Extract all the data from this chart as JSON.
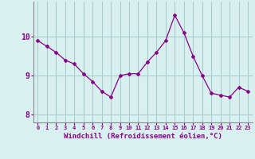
{
  "x": [
    0,
    1,
    2,
    3,
    4,
    5,
    6,
    7,
    8,
    9,
    10,
    11,
    12,
    13,
    14,
    15,
    16,
    17,
    18,
    19,
    20,
    21,
    22,
    23
  ],
  "y": [
    9.9,
    9.75,
    9.6,
    9.4,
    9.3,
    9.05,
    8.85,
    8.6,
    8.45,
    9.0,
    9.05,
    9.05,
    9.35,
    9.6,
    9.9,
    10.55,
    10.1,
    9.5,
    9.0,
    8.55,
    8.5,
    8.45,
    8.7,
    8.6
  ],
  "line_color": "#880088",
  "marker": "D",
  "marker_size": 2,
  "bg_color": "#d8f0f0",
  "grid_color": "#aacccc",
  "xlabel": "Windchill (Refroidissement éolien,°C)",
  "xlabel_color": "#880088",
  "tick_color": "#880088",
  "yticks": [
    8,
    9,
    10
  ],
  "ylim": [
    7.8,
    10.9
  ],
  "xlim": [
    -0.5,
    23.5
  ],
  "xtick_labels": [
    "0",
    "1",
    "2",
    "3",
    "4",
    "5",
    "6",
    "7",
    "8",
    "9",
    "10",
    "11",
    "12",
    "13",
    "14",
    "15",
    "16",
    "17",
    "18",
    "19",
    "20",
    "21",
    "22",
    "23"
  ]
}
